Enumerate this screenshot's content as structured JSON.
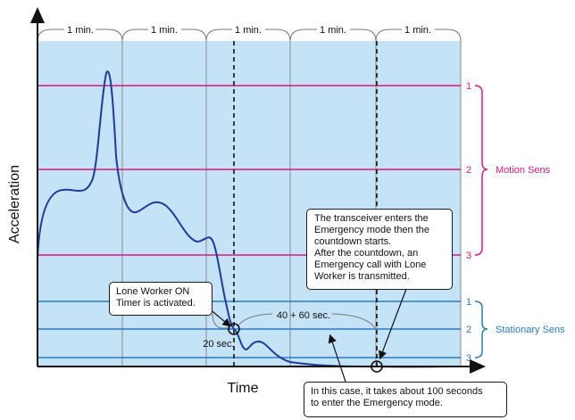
{
  "axes": {
    "y_label": "Acceleration",
    "x_label": "Time"
  },
  "minute_labels": [
    "1 min.",
    "1 min.",
    "1 min.",
    "1 min.",
    "1 min."
  ],
  "motion": {
    "levels": [
      "1",
      "2",
      "3"
    ],
    "label": "Motion Sens",
    "color": "#d81b7f"
  },
  "stationary": {
    "levels": [
      "1",
      "2",
      "3"
    ],
    "label": "Stationary Sens",
    "color": "#2a7bbd"
  },
  "intervals": {
    "short": "20 sec.",
    "long": "40 + 60 sec."
  },
  "callouts": {
    "lone_worker": [
      "Lone Worker ON",
      "Timer is activated."
    ],
    "emergency": [
      "The transceiver enters the",
      "Emergency mode then the",
      "countdown starts.",
      "After the countdown, an",
      "Emergency call with Lone",
      "Worker is transmitted."
    ],
    "duration": [
      "In this case, it takes about 100 seconds",
      "to enter the Emergency mode."
    ]
  },
  "colors": {
    "background": "#c5e3f6",
    "curve": "#1f3b9a",
    "axis": "#111111"
  }
}
